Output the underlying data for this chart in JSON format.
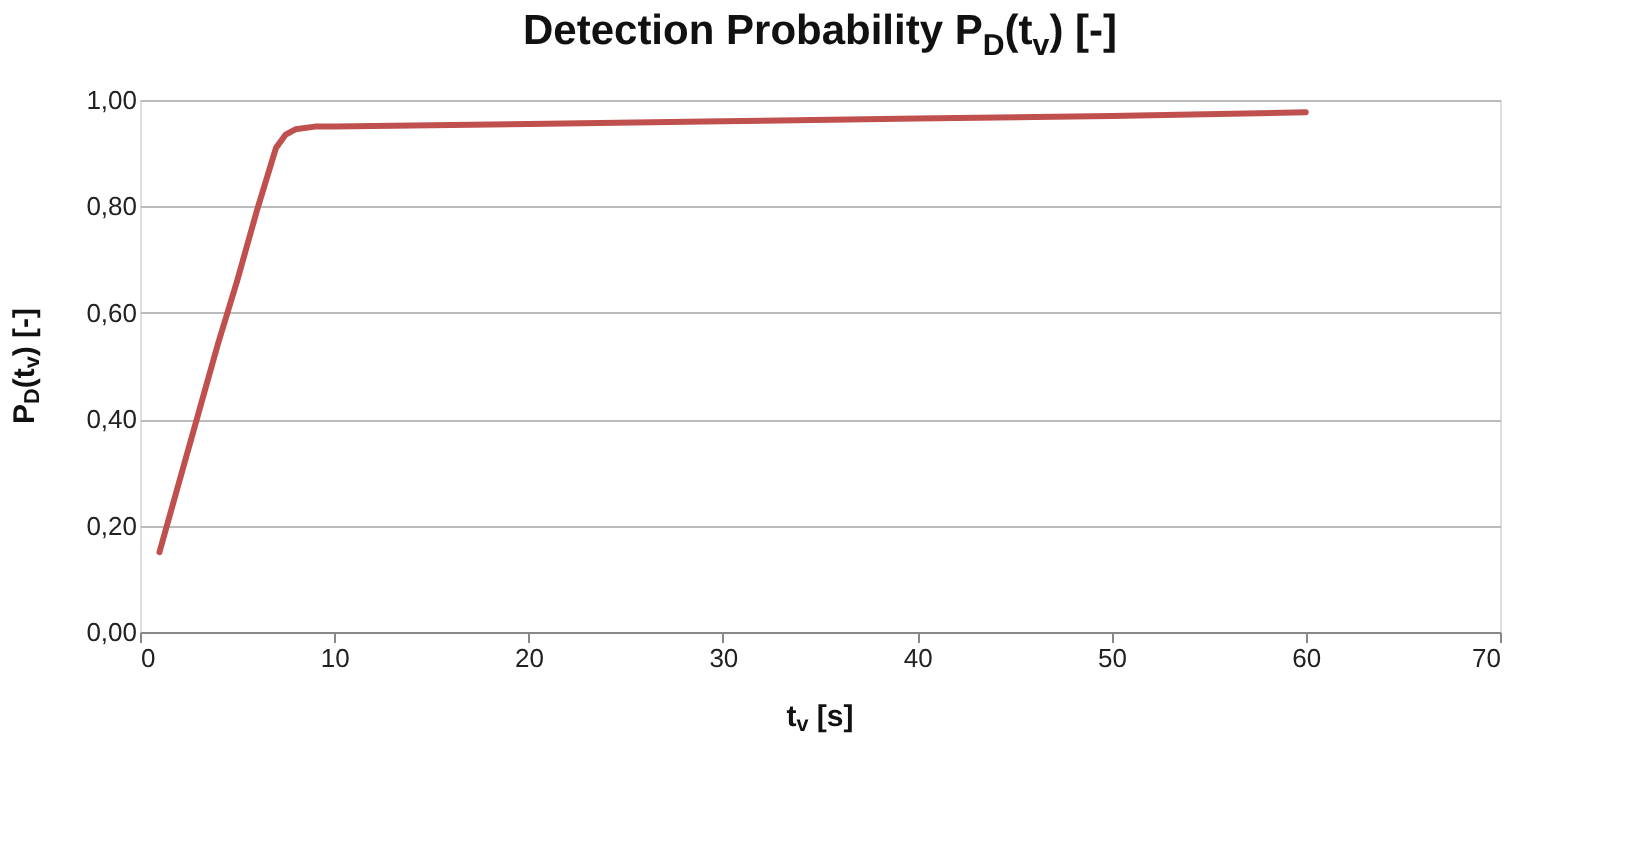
{
  "chart_data": {
    "type": "line",
    "title": "Detection Probability P$_{D}$(t$_{v}$) [-]",
    "xlabel": "t$_{v}$ [s]",
    "ylabel": "P$_{D}$(t$_{v}$) [-]",
    "series": [
      {
        "color": "#c0504d",
        "x": [
          1,
          2,
          3,
          4,
          5,
          6,
          7,
          7.5,
          8,
          9,
          10,
          20,
          30,
          40,
          50,
          60
        ],
        "values": [
          0.15,
          0.28,
          0.41,
          0.54,
          0.66,
          0.79,
          0.91,
          0.935,
          0.945,
          0.95,
          0.95,
          0.955,
          0.96,
          0.965,
          0.97,
          0.977
        ]
      }
    ],
    "xlim": [
      0,
      70
    ],
    "xticks": [
      0,
      10,
      20,
      30,
      40,
      50,
      60,
      70
    ],
    "ylim": [
      0,
      1
    ],
    "yticks": [
      {
        "value": 0,
        "label": "0,00"
      },
      {
        "value": 0.2,
        "label": "0,20"
      },
      {
        "value": 0.4,
        "label": "0,40"
      },
      {
        "value": 0.6,
        "label": "0,60"
      },
      {
        "value": 0.8,
        "label": "0,80"
      },
      {
        "value": 1,
        "label": "1,00"
      }
    ],
    "grid": "y",
    "legend": false,
    "marker": "none",
    "line_style": "solid"
  }
}
